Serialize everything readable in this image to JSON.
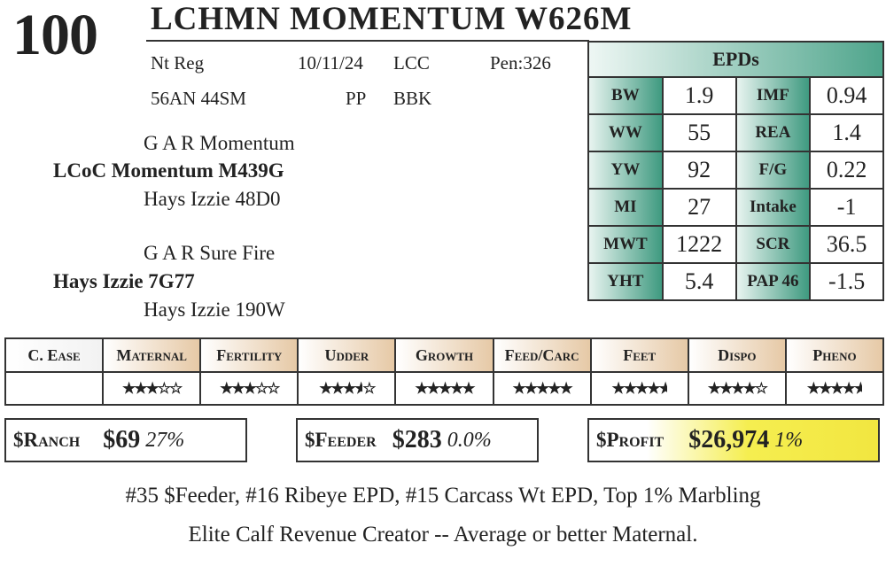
{
  "lot": "100",
  "name": "LCHMN MOMENTUM W626M",
  "info": {
    "reg": "Nt Reg",
    "dob": "10/11/24",
    "breeder": "LCC",
    "pen": "Pen:326",
    "comp": "56AN 44SM",
    "poll": "PP",
    "color": "BBK"
  },
  "pedigree": {
    "sire_sire": "G A R Momentum",
    "sire": "LCoC Momentum M439G",
    "sire_dam": "Hays Izzie 48D0",
    "dam_sire": "G A R Sure Fire",
    "dam": "Hays Izzie 7G77",
    "dam_dam": "Hays Izzie 190W"
  },
  "epds": {
    "title": "EPDs",
    "rows": [
      {
        "l1": "BW",
        "v1": "1.9",
        "l2": "IMF",
        "v2": "0.94"
      },
      {
        "l1": "WW",
        "v1": "55",
        "l2": "REA",
        "v2": "1.4"
      },
      {
        "l1": "YW",
        "v1": "92",
        "l2": "F/G",
        "v2": "0.22"
      },
      {
        "l1": "MI",
        "v1": "27",
        "l2": "Intake",
        "v2": "-1"
      },
      {
        "l1": "MWT",
        "v1": "1222",
        "l2": "SCR",
        "v2": "36.5"
      },
      {
        "l1": "YHT",
        "v1": "5.4",
        "l2": "PAP 46",
        "v2": "-1.5"
      }
    ]
  },
  "traits": [
    {
      "label": "C. Ease",
      "stars": null
    },
    {
      "label": "Maternal",
      "stars": 3
    },
    {
      "label": "Fertility",
      "stars": 3
    },
    {
      "label": "Udder",
      "stars": 3.5
    },
    {
      "label": "Growth",
      "stars": 5
    },
    {
      "label": "Feed/Carc",
      "stars": 5
    },
    {
      "label": "Feet",
      "stars": 4.5
    },
    {
      "label": "Dispo",
      "stars": 4
    },
    {
      "label": "Pheno",
      "stars": 4.5
    }
  ],
  "indexes": {
    "ranch": {
      "label": "$Ranch",
      "value": "$69",
      "pct": "27%"
    },
    "feeder": {
      "label": "$Feeder",
      "value": "$283",
      "pct": "0.0%"
    },
    "profit": {
      "label": "$Profit",
      "value": "$26,974",
      "pct": "1%"
    }
  },
  "notes": [
    "#35 $Feeder, #16 Ribeye EPD, #15 Carcass Wt EPD, Top 1% Marbling",
    "Elite Calf Revenue Creator -- Average or better Maternal."
  ],
  "colors": {
    "epd_green": "#3f9a80",
    "trait_tan": "#e6c9a6",
    "profit_yellow": "#f2e640"
  }
}
